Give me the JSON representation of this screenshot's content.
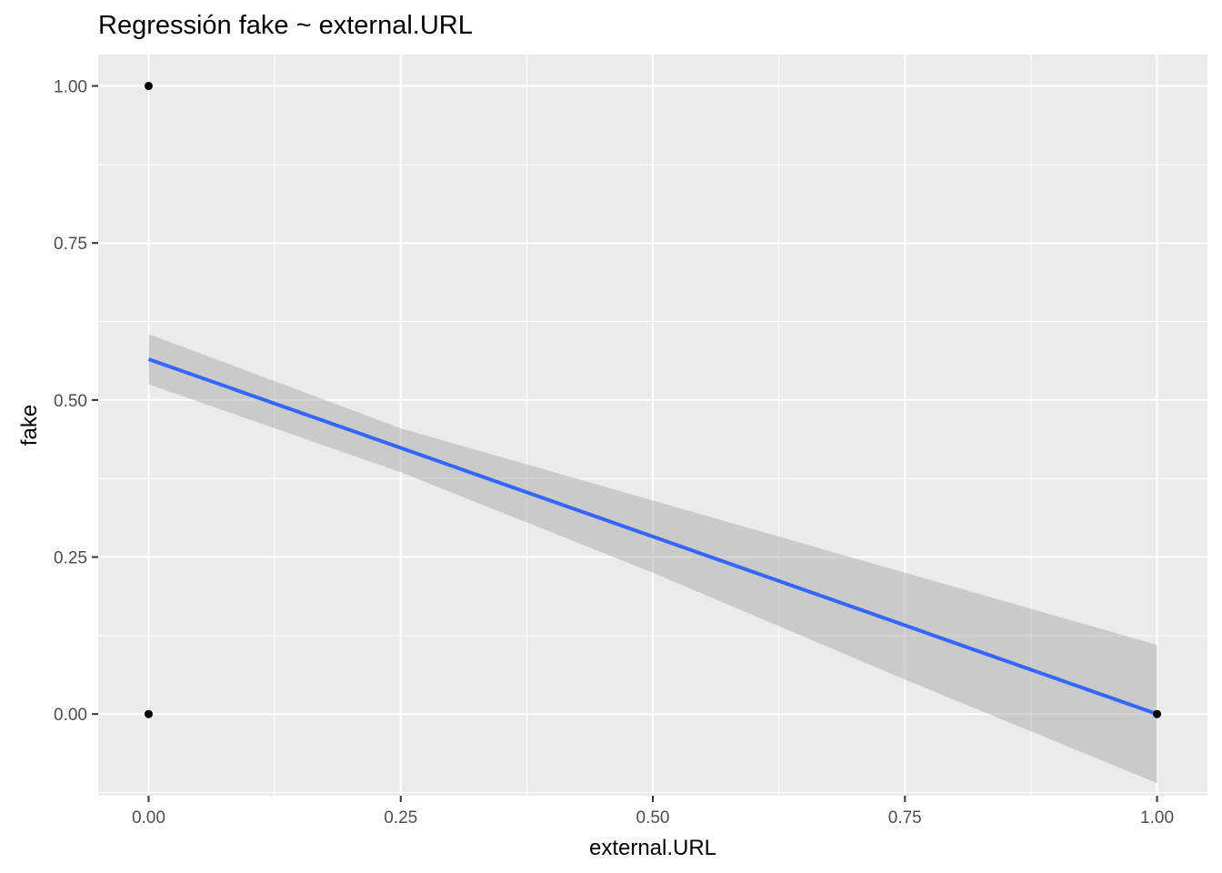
{
  "chart_data": {
    "type": "scatter",
    "title": "Regressión fake ~ external.URL",
    "xlabel": "external.URL",
    "ylabel": "fake",
    "xlim": [
      -0.05,
      1.05
    ],
    "ylim": [
      -0.13,
      1.05
    ],
    "x_ticks": [
      "0.00",
      "0.25",
      "0.50",
      "0.75",
      "1.00"
    ],
    "x_tick_values": [
      0,
      0.25,
      0.5,
      0.75,
      1.0
    ],
    "y_ticks": [
      "0.00",
      "0.25",
      "0.50",
      "0.75",
      "1.00"
    ],
    "y_tick_values": [
      0,
      0.25,
      0.5,
      0.75,
      1.0
    ],
    "points": [
      {
        "x": 0,
        "y": 1
      },
      {
        "x": 0,
        "y": 0
      },
      {
        "x": 1,
        "y": 0
      }
    ],
    "fit_line": {
      "x": [
        0,
        1
      ],
      "y": [
        0.565,
        0.0
      ]
    },
    "confidence_band": {
      "x": [
        0,
        0.25,
        0.5,
        0.75,
        1.0
      ],
      "upper": [
        0.605,
        0.455,
        0.34,
        0.225,
        0.11
      ],
      "lower": [
        0.525,
        0.385,
        0.225,
        0.055,
        -0.11
      ]
    },
    "grid": true,
    "colors": {
      "panel": "#ebebeb",
      "grid": "#ffffff",
      "line": "#3366ff",
      "band": "#999999",
      "points": "#000000"
    }
  }
}
